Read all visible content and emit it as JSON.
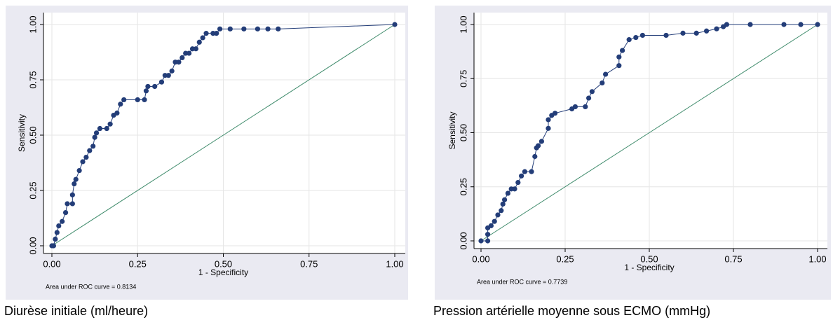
{
  "chart_data": [
    {
      "type": "line",
      "caption": "Diurèse initiale (ml/heure)",
      "xlabel": "1 - Specificity",
      "ylabel": "Sensitivity",
      "annotation": "Area under ROC curve = 0.8134",
      "color": "#233d78",
      "grid": true,
      "xlim": [
        0,
        1
      ],
      "ylim": [
        0,
        1
      ],
      "xticks": [
        {
          "value": 0,
          "label": "0.00"
        },
        {
          "value": 0.25,
          "label": "0.25"
        },
        {
          "value": 0.5,
          "label": "0.50"
        },
        {
          "value": 0.75,
          "label": "0.75"
        },
        {
          "value": 1,
          "label": "1.00"
        }
      ],
      "yticks": [
        {
          "value": 0,
          "label": "0.00"
        },
        {
          "value": 0.25,
          "label": "0.25"
        },
        {
          "value": 0.5,
          "label": "0.50"
        },
        {
          "value": 0.75,
          "label": "0.75"
        },
        {
          "value": 1,
          "label": "1.00"
        }
      ],
      "x": [
        0,
        0.005,
        0.01,
        0.015,
        0.02,
        0.03,
        0.04,
        0.045,
        0.06,
        0.06,
        0.065,
        0.07,
        0.08,
        0.09,
        0.1,
        0.11,
        0.12,
        0.125,
        0.13,
        0.14,
        0.16,
        0.17,
        0.18,
        0.19,
        0.2,
        0.21,
        0.25,
        0.27,
        0.275,
        0.28,
        0.3,
        0.32,
        0.33,
        0.34,
        0.35,
        0.36,
        0.37,
        0.38,
        0.39,
        0.4,
        0.41,
        0.42,
        0.43,
        0.44,
        0.45,
        0.47,
        0.48,
        0.49,
        0.52,
        0.56,
        0.6,
        0.63,
        0.66,
        1
      ],
      "values": [
        0,
        0,
        0.03,
        0.06,
        0.09,
        0.11,
        0.15,
        0.19,
        0.19,
        0.23,
        0.28,
        0.3,
        0.34,
        0.38,
        0.4,
        0.43,
        0.45,
        0.49,
        0.51,
        0.53,
        0.53,
        0.55,
        0.59,
        0.6,
        0.64,
        0.66,
        0.66,
        0.66,
        0.7,
        0.72,
        0.72,
        0.74,
        0.77,
        0.77,
        0.79,
        0.83,
        0.83,
        0.85,
        0.87,
        0.87,
        0.89,
        0.89,
        0.92,
        0.94,
        0.96,
        0.96,
        0.96,
        0.98,
        0.98,
        0.98,
        0.98,
        0.98,
        0.98,
        1
      ]
    },
    {
      "type": "line",
      "caption": "Pression artérielle moyenne sous ECMO (mmHg)",
      "xlabel": "1 - Specificity",
      "ylabel": "Sensitivity",
      "annotation": "Area under ROC curve = 0.7739",
      "color": "#233d78",
      "grid": true,
      "xlim": [
        0,
        1
      ],
      "ylim": [
        0,
        1
      ],
      "xticks": [
        {
          "value": 0,
          "label": "0.00"
        },
        {
          "value": 0.25,
          "label": "0.25"
        },
        {
          "value": 0.5,
          "label": "0.50"
        },
        {
          "value": 0.75,
          "label": "0.75"
        },
        {
          "value": 1,
          "label": "1.00"
        }
      ],
      "yticks": [
        {
          "value": 0,
          "label": "0.00"
        },
        {
          "value": 0.25,
          "label": "0.25"
        },
        {
          "value": 0.5,
          "label": "0.50"
        },
        {
          "value": 0.75,
          "label": "0.75"
        },
        {
          "value": 1,
          "label": "1.00"
        }
      ],
      "x": [
        0,
        0.02,
        0.02,
        0.02,
        0.03,
        0.04,
        0.05,
        0.06,
        0.065,
        0.07,
        0.08,
        0.09,
        0.1,
        0.11,
        0.12,
        0.13,
        0.15,
        0.16,
        0.165,
        0.17,
        0.18,
        0.2,
        0.2,
        0.21,
        0.22,
        0.27,
        0.28,
        0.31,
        0.32,
        0.33,
        0.36,
        0.37,
        0.41,
        0.41,
        0.42,
        0.44,
        0.46,
        0.48,
        0.55,
        0.6,
        0.64,
        0.67,
        0.7,
        0.72,
        0.73,
        0.8,
        0.9,
        0.95,
        1
      ],
      "values": [
        0,
        0,
        0.03,
        0.06,
        0.07,
        0.09,
        0.12,
        0.14,
        0.17,
        0.19,
        0.22,
        0.24,
        0.24,
        0.27,
        0.3,
        0.32,
        0.32,
        0.39,
        0.43,
        0.44,
        0.46,
        0.52,
        0.56,
        0.58,
        0.59,
        0.61,
        0.62,
        0.62,
        0.66,
        0.69,
        0.73,
        0.77,
        0.81,
        0.85,
        0.88,
        0.93,
        0.94,
        0.95,
        0.95,
        0.96,
        0.96,
        0.97,
        0.98,
        0.99,
        1,
        1,
        1,
        1,
        1
      ]
    }
  ]
}
